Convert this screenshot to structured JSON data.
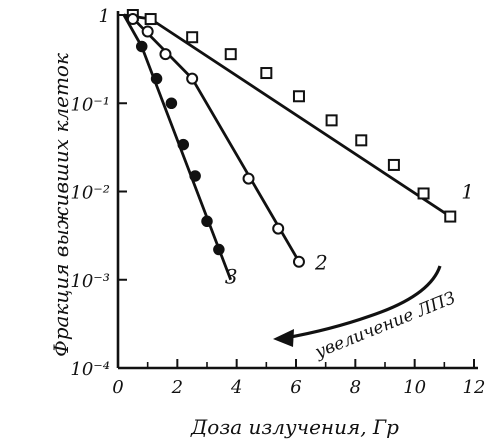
{
  "chart_data": {
    "type": "scatter",
    "title": "",
    "xlabel": "Доза излучения, Гр",
    "ylabel": "Фракция выживших клеток",
    "xlim": [
      0,
      12
    ],
    "ylim": [
      0.0001,
      1
    ],
    "yscale": "log",
    "grid": false,
    "x_ticks": [
      0,
      2,
      4,
      6,
      8,
      10,
      12
    ],
    "x_tick_labels": [
      "0",
      "2",
      "4",
      "6",
      "8",
      "10",
      "12"
    ],
    "y_ticks": [
      1,
      0.1,
      0.01,
      0.001,
      0.0001
    ],
    "y_tick_labels": [
      "1",
      "10⁻¹",
      "10⁻²",
      "10⁻³",
      "10⁻⁴"
    ],
    "series": [
      {
        "label": "1",
        "marker": "square-open",
        "points": [
          [
            0.5,
            1.0
          ],
          [
            1.1,
            0.9
          ],
          [
            2.5,
            0.56
          ],
          [
            3.8,
            0.36
          ],
          [
            5.0,
            0.22
          ],
          [
            6.1,
            0.12
          ],
          [
            7.2,
            0.064
          ],
          [
            8.2,
            0.038
          ],
          [
            9.3,
            0.02
          ],
          [
            10.3,
            0.0095
          ],
          [
            11.2,
            0.0052
          ]
        ],
        "line": [
          [
            0.2,
            1.0
          ],
          [
            1.1,
            0.9
          ],
          [
            11.2,
            0.0052
          ]
        ]
      },
      {
        "label": "2",
        "marker": "circle-open",
        "points": [
          [
            0.5,
            0.9
          ],
          [
            1.0,
            0.65
          ],
          [
            1.6,
            0.36
          ],
          [
            2.5,
            0.19
          ],
          [
            4.4,
            0.014
          ],
          [
            5.4,
            0.0038
          ],
          [
            6.1,
            0.0016
          ]
        ],
        "line": [
          [
            0.2,
            1.0
          ],
          [
            0.6,
            0.85
          ],
          [
            2.5,
            0.19
          ],
          [
            6.1,
            0.0016
          ]
        ]
      },
      {
        "label": "3",
        "marker": "circle-filled",
        "points": [
          [
            0.8,
            0.44
          ],
          [
            1.3,
            0.19
          ],
          [
            1.8,
            0.1
          ],
          [
            2.2,
            0.034
          ],
          [
            2.6,
            0.015
          ],
          [
            3.0,
            0.0046
          ],
          [
            3.4,
            0.0022
          ]
        ],
        "line": [
          [
            0.2,
            1.0
          ],
          [
            0.8,
            0.44
          ],
          [
            3.8,
            0.001
          ]
        ]
      }
    ],
    "annotations": [
      {
        "text": "увеличение ЛПЗ",
        "arrow": true
      }
    ]
  }
}
